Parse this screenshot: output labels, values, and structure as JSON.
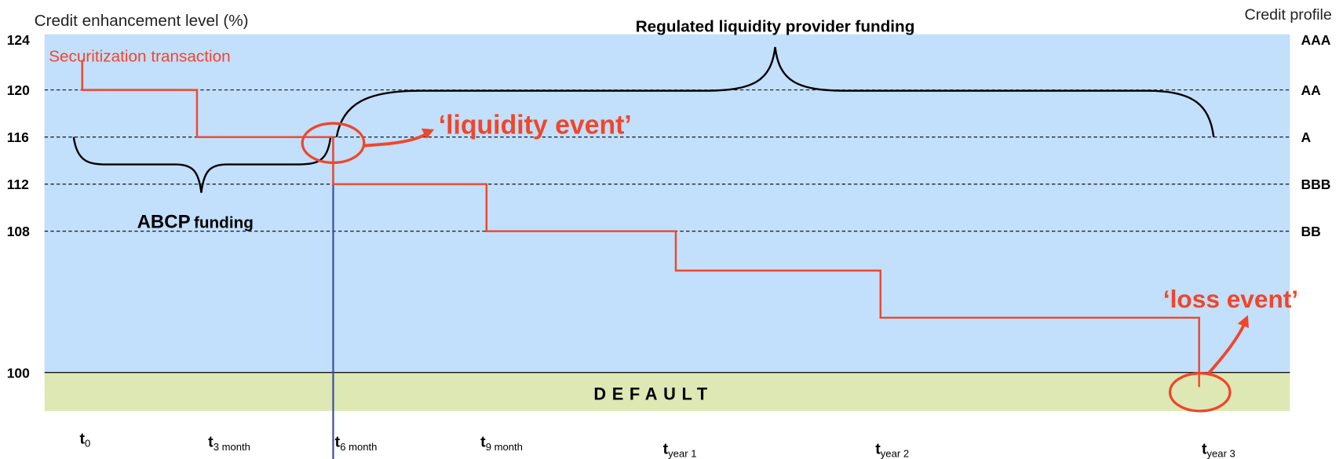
{
  "header": {
    "y_axis_title": "Credit enhancement  level (%)",
    "right_axis_title": "Credit profile",
    "title": "Regulated liquidity provider funding"
  },
  "levels": [
    {
      "value": "124",
      "rating": "AAA"
    },
    {
      "value": "120",
      "rating": "AA"
    },
    {
      "value": "116",
      "rating": "A"
    },
    {
      "value": "112",
      "rating": "BBB"
    },
    {
      "value": "108",
      "rating": "BB"
    },
    {
      "value": "100"
    }
  ],
  "annotations": {
    "securitization": "Securitization transaction",
    "liquidity_event": "‘liquidity event’",
    "loss_event": "‘loss event’",
    "abcp_bold": "ABCP",
    "abcp_rest": "funding",
    "default": "DEFAULT"
  },
  "time_points": [
    {
      "main": "t",
      "sub": "0"
    },
    {
      "main": "t",
      "sub": "3 month"
    },
    {
      "main": "t",
      "sub": "6 month"
    },
    {
      "main": "t",
      "sub": "9 month"
    },
    {
      "main": "t",
      "sub": "year 1"
    },
    {
      "main": "t",
      "sub": "year 2"
    },
    {
      "main": "t",
      "sub": "year 3"
    }
  ]
}
